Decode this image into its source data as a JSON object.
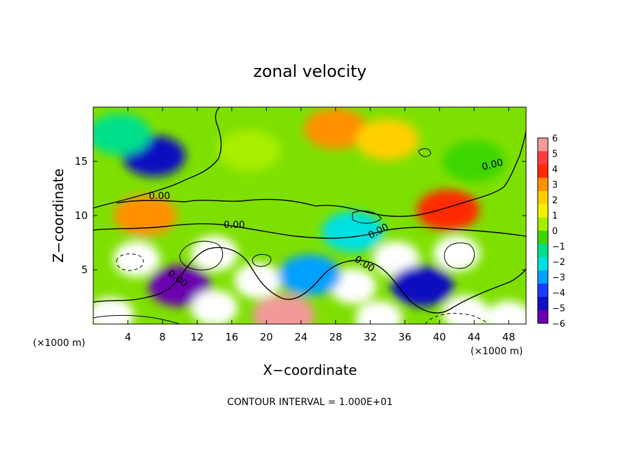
{
  "chart_data": {
    "type": "heatmap",
    "title": "zonal velocity",
    "xlabel": "X−coordinate",
    "ylabel": "Z−coordinate",
    "x_unit_left": "(×1000 m)",
    "x_unit_right": "(×1000 m)",
    "footer": "CONTOUR INTERVAL = 1.000E+01",
    "xlim": [
      0,
      50
    ],
    "ylim": [
      0,
      20
    ],
    "x_ticks": [
      4,
      8,
      12,
      16,
      20,
      24,
      28,
      32,
      36,
      40,
      44,
      48
    ],
    "y_ticks": [
      5,
      10,
      15
    ],
    "colorbar": {
      "min": -6,
      "max": 6,
      "ticks": [
        6,
        5,
        4,
        3,
        2,
        1,
        0,
        -1,
        -2,
        -3,
        -4,
        -5,
        -6
      ],
      "tick_labels": [
        "6",
        "5",
        "4",
        "3",
        "2",
        "1",
        "0",
        "−1",
        "−2",
        "−3",
        "−4",
        "−5",
        "−6"
      ],
      "colors": [
        "#f29a9a",
        "#ff3c3c",
        "#ff2a00",
        "#ff9000",
        "#ffd000",
        "#f4f200",
        "#a8ee00",
        "#3ed600",
        "#00e08a",
        "#00e0e0",
        "#00a0ff",
        "#1a3cff",
        "#1010c0",
        "#6a00b0"
      ]
    },
    "contour_labels": [
      "0.00",
      "0.00",
      "0.00",
      "0.00",
      "0.00",
      "0.00"
    ],
    "features": [
      {
        "x": 7,
        "z": 15.5,
        "value": -4.5
      },
      {
        "x": 3,
        "z": 17.5,
        "value": -1.5
      },
      {
        "x": 18,
        "z": 16,
        "value": 0.3
      },
      {
        "x": 28,
        "z": 18,
        "value": 3
      },
      {
        "x": 34,
        "z": 17,
        "value": 2
      },
      {
        "x": 44,
        "z": 15,
        "value": -0.3
      },
      {
        "x": 6,
        "z": 10,
        "value": 3
      },
      {
        "x": 41,
        "z": 10.5,
        "value": 4
      },
      {
        "x": 30,
        "z": 8.5,
        "value": -2.5
      },
      {
        "x": 5,
        "z": 6,
        "value": 9
      },
      {
        "x": 14,
        "z": 6.5,
        "value": 9
      },
      {
        "x": 19,
        "z": 4,
        "value": 7
      },
      {
        "x": 30,
        "z": 3.5,
        "value": 7
      },
      {
        "x": 35,
        "z": 6,
        "value": 7
      },
      {
        "x": 42,
        "z": 6.5,
        "value": 9
      },
      {
        "x": 10,
        "z": 3.5,
        "value": -6
      },
      {
        "x": 25,
        "z": 4.5,
        "value": -3
      },
      {
        "x": 38,
        "z": 3.5,
        "value": -5
      },
      {
        "x": 2,
        "z": 0.8,
        "value": 9
      },
      {
        "x": 14,
        "z": 1.5,
        "value": 9
      },
      {
        "x": 22,
        "z": 0.8,
        "value": 6
      },
      {
        "x": 33,
        "z": 0.5,
        "value": 7
      },
      {
        "x": 43,
        "z": 1,
        "value": 8
      },
      {
        "x": 48,
        "z": 0.5,
        "value": 7
      }
    ]
  }
}
